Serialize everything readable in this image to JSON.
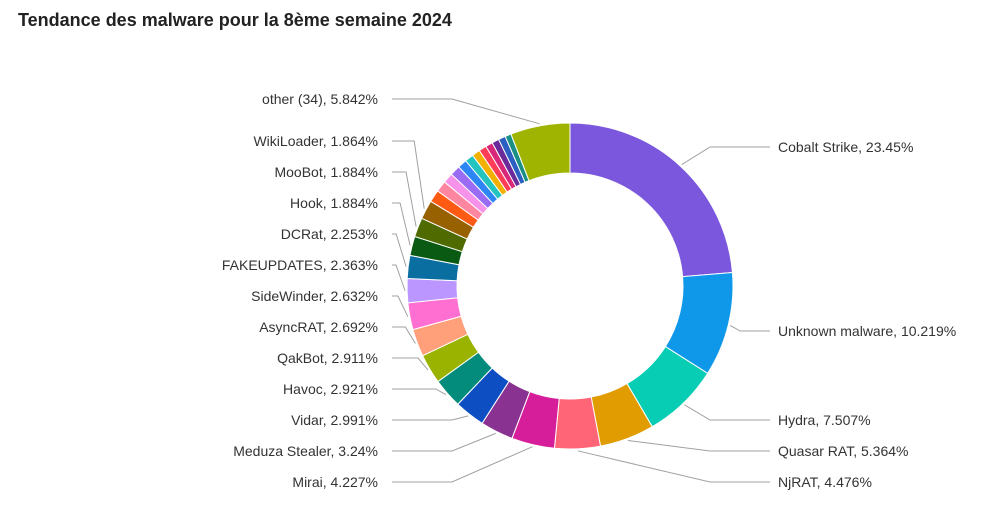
{
  "chart_data": {
    "type": "pie",
    "title": "Tendance des malware pour la 8ème semaine 2024",
    "slices": [
      {
        "label": "Cobalt Strike, 23.45%",
        "name": "Cobalt Strike",
        "value": 23.45,
        "color": "#7b57de"
      },
      {
        "label": "Unknown malware, 10.219%",
        "name": "Unknown malware",
        "value": 10.219,
        "color": "#0f98ea"
      },
      {
        "label": "Hydra, 7.507%",
        "name": "Hydra",
        "value": 7.507,
        "color": "#06cdb3"
      },
      {
        "label": "Quasar RAT, 5.364%",
        "name": "Quasar RAT",
        "value": 5.364,
        "color": "#e09c00"
      },
      {
        "label": "NjRAT, 4.476%",
        "name": "NjRAT",
        "value": 4.476,
        "color": "#ff6577"
      },
      {
        "label": "Mirai, 4.227%",
        "name": "Mirai",
        "value": 4.227,
        "color": "#d61e9b"
      },
      {
        "label": "Meduza Stealer, 3.24%",
        "name": "Meduza Stealer",
        "value": 3.24,
        "color": "#8a3291"
      },
      {
        "label": "Vidar, 2.991%",
        "name": "Vidar",
        "value": 2.991,
        "color": "#0d4fc3"
      },
      {
        "label": "Havoc, 2.921%",
        "name": "Havoc",
        "value": 2.921,
        "color": "#038c7c"
      },
      {
        "label": "QakBot, 2.911%",
        "name": "QakBot",
        "value": 2.911,
        "color": "#99b300"
      },
      {
        "label": "AsyncRAT, 2.692%",
        "name": "AsyncRAT",
        "value": 2.692,
        "color": "#ffa07a"
      },
      {
        "label": "SideWinder, 2.632%",
        "name": "SideWinder",
        "value": 2.632,
        "color": "#ff6fd1"
      },
      {
        "label": "FAKEUPDATES, 2.363%",
        "name": "FAKEUPDATES",
        "value": 2.363,
        "color": "#bb96ff"
      },
      {
        "label": "DCRat, 2.253%",
        "name": "DCRat",
        "value": 2.253,
        "color": "#0a6ea1"
      },
      {
        "label": "Hook, 1.884%",
        "name": "Hook",
        "value": 1.884,
        "color": "#0b5a14"
      },
      {
        "label": "MooBot, 1.884%",
        "name": "MooBot",
        "value": 1.884,
        "color": "#4f6b00"
      },
      {
        "label": "WikiLoader, 1.864%",
        "name": "WikiLoader",
        "value": 1.864,
        "color": "#986100"
      },
      {
        "label": "",
        "name": "",
        "value": 1.2,
        "color": "#ff5a14"
      },
      {
        "label": "",
        "name": "",
        "value": 1.1,
        "color": "#ff86a0"
      },
      {
        "label": "",
        "name": "",
        "value": 1.0,
        "color": "#f792ea"
      },
      {
        "label": "",
        "name": "",
        "value": 1.0,
        "color": "#9a6cf5"
      },
      {
        "label": "",
        "name": "",
        "value": 0.9,
        "color": "#2e86f5"
      },
      {
        "label": "",
        "name": "",
        "value": 0.85,
        "color": "#23c4c0"
      },
      {
        "label": "",
        "name": "",
        "value": 0.8,
        "color": "#f2b100"
      },
      {
        "label": "",
        "name": "",
        "value": 0.75,
        "color": "#ff3d57"
      },
      {
        "label": "",
        "name": "",
        "value": 0.7,
        "color": "#d9277a"
      },
      {
        "label": "",
        "name": "",
        "value": 0.7,
        "color": "#6a2a9a"
      },
      {
        "label": "",
        "name": "",
        "value": 0.7,
        "color": "#2c5fc2"
      },
      {
        "label": "",
        "name": "",
        "value": 0.6,
        "color": "#1a8f85"
      },
      {
        "label": "other (34), 5.842%",
        "name": "other (34)",
        "value": 5.842,
        "color": "#9fb400"
      }
    ]
  }
}
